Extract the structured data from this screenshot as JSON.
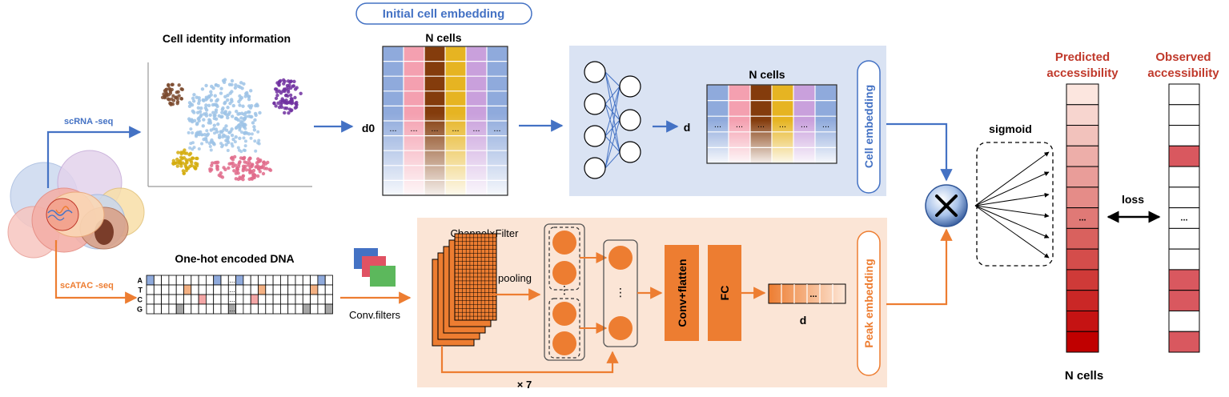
{
  "labels": {
    "initial_cell_embedding": "Initial cell embedding",
    "cell_identity_information": "Cell identity information",
    "n_cells_top": "N cells",
    "n_cells_mid": "N cells",
    "n_cells_bottom": "N cells",
    "d0": "d0",
    "d_cell": "d",
    "d_peak": "d",
    "scrna_seq": "scRNA -seq",
    "scatac_seq": "scATAC -seq",
    "one_hot_encoded_dna": "One-hot encoded DNA",
    "conv_filters": "Conv.filters",
    "channel_filter": "Channel×Filter",
    "pooling": "pooling",
    "conv_flatten": "Conv+flatten",
    "fc": "FC",
    "times_7": "× 7",
    "cell_embedding": "Cell embedding",
    "peak_embedding": "Peak embedding",
    "sigmoid": "sigmoid",
    "predicted_accessibility_1": "Predicted",
    "predicted_accessibility_2": "accessibility",
    "observed_accessibility_1": "Observed",
    "observed_accessibility_2": "accessibility",
    "loss": "loss",
    "ellipsis": "...",
    "vertical_ellipsis": "⋮"
  },
  "dna_bases": [
    "A",
    "T",
    "C",
    "G"
  ],
  "colors": {
    "blue_arrow": "#4472c4",
    "orange": "#ed7d31",
    "cell_panel_bg": "#dae3f3",
    "peak_panel_bg": "#fbe5d6",
    "dark_red": "#c00000",
    "label_blue": "#4472c4",
    "label_red": "#c0392b"
  },
  "matrix_column_colors": [
    "#8faadc",
    "#f4a0b0",
    "#843c0c",
    "#e6b422",
    "#c9a0dc",
    "#8faadc"
  ],
  "observed_pattern": [
    0,
    0,
    0,
    1,
    0,
    0,
    0,
    0,
    0,
    1,
    1,
    0,
    1
  ],
  "predicted_pattern": [
    0.05,
    0.12,
    0.2,
    0.28,
    0.35,
    0.42,
    0.5,
    0.6,
    0.68,
    0.76,
    0.84,
    0.92,
    1.0
  ]
}
